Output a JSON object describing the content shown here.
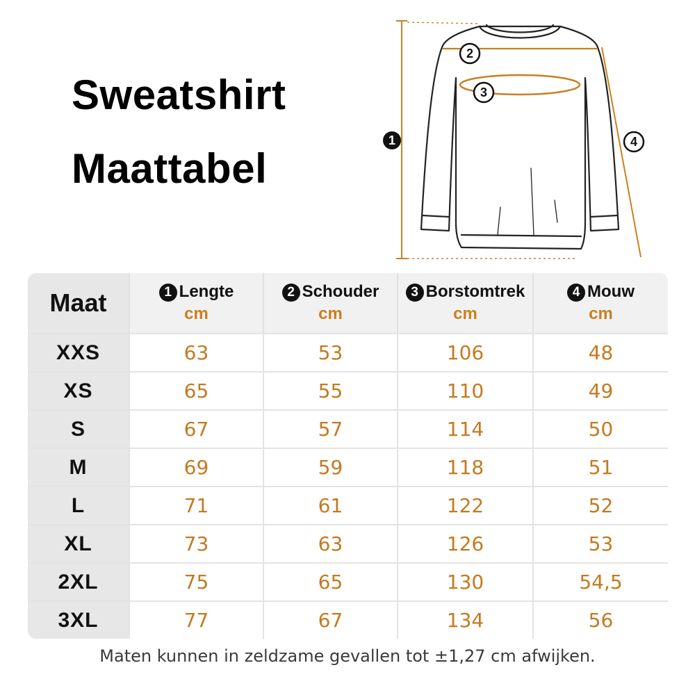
{
  "title": {
    "line1": "Sweatshirt",
    "line2": "Maattabel"
  },
  "diagram": {
    "markers": [
      "1",
      "2",
      "3",
      "4"
    ],
    "accent_color": "#c9801f",
    "icon": "sweatshirt-outline-icon"
  },
  "table": {
    "header": {
      "size_label": "Maat",
      "columns": [
        {
          "number": "1",
          "label": "Lengte",
          "unit": "cm"
        },
        {
          "number": "2",
          "label": "Schouder",
          "unit": "cm"
        },
        {
          "number": "3",
          "label": "Borstomtrek",
          "unit": "cm"
        },
        {
          "number": "4",
          "label": "Mouw",
          "unit": "cm"
        }
      ]
    },
    "rows": [
      {
        "size": "XXS",
        "values": [
          "63",
          "53",
          "106",
          "48"
        ]
      },
      {
        "size": "XS",
        "values": [
          "65",
          "55",
          "110",
          "49"
        ]
      },
      {
        "size": "S",
        "values": [
          "67",
          "57",
          "114",
          "50"
        ]
      },
      {
        "size": "M",
        "values": [
          "69",
          "59",
          "118",
          "51"
        ]
      },
      {
        "size": "L",
        "values": [
          "71",
          "61",
          "122",
          "52"
        ]
      },
      {
        "size": "XL",
        "values": [
          "73",
          "63",
          "126",
          "53"
        ]
      },
      {
        "size": "2XL",
        "values": [
          "75",
          "65",
          "130",
          "54,5"
        ]
      },
      {
        "size": "3XL",
        "values": [
          "77",
          "67",
          "134",
          "56"
        ]
      }
    ],
    "value_color": "#c47a1f"
  },
  "footnote": "Maten kunnen in zeldzame gevallen tot ±1,27 cm afwijken."
}
